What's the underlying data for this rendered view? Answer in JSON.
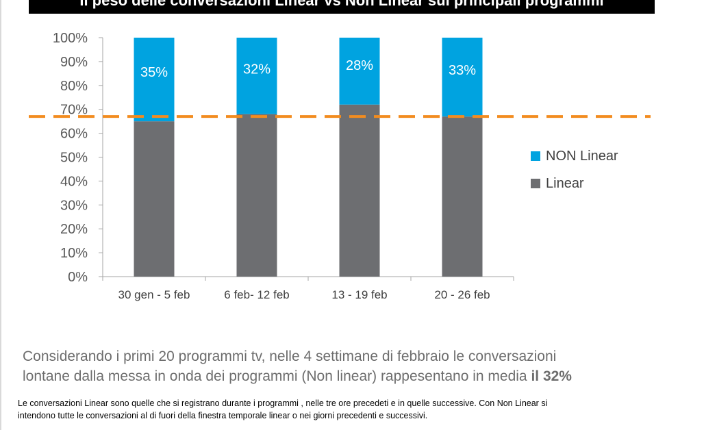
{
  "title": "Il peso delle conversazioni Linear vs Non Linear sui principali programmi",
  "chart_data": {
    "type": "bar",
    "stacked": true,
    "percent_axis": true,
    "categories": [
      "30 gen - 5 feb",
      "6 feb- 12 feb",
      "13 - 19 feb",
      "20 - 26 feb"
    ],
    "series": [
      {
        "name": "Linear",
        "values": [
          65,
          68,
          72,
          67
        ],
        "color": "#6d6e71"
      },
      {
        "name": "NON Linear",
        "values": [
          35,
          32,
          28,
          33
        ],
        "color": "#00a3e0"
      }
    ],
    "data_labels": [
      "35%",
      "32%",
      "28%",
      "33%"
    ],
    "yticks": [
      "0%",
      "10%",
      "20%",
      "30%",
      "40%",
      "50%",
      "60%",
      "70%",
      "80%",
      "90%",
      "100%"
    ],
    "ylim": [
      0,
      100
    ],
    "reference_line": {
      "value": 67,
      "color": "#f28c1f",
      "style": "dashed"
    },
    "legend_position": "right",
    "grid": false
  },
  "legend": [
    {
      "label": "NON Linear",
      "color": "#00a3e0"
    },
    {
      "label": "Linear",
      "color": "#6d6e71"
    }
  ],
  "summary": {
    "line1": "Considerando i primi 20 programmi tv, nelle  4 settimane di febbraio  le conversazioni",
    "line2_pre": "lontane dalla messa in onda dei programmi (Non linear) rappesentano in media ",
    "line2_bold": "il 32%"
  },
  "footnote": {
    "line1": "Le conversazioni Linear sono quelle che si registrano durante i programmi , nelle tre ore precedeti e in quelle successive. Con Non Linear si",
    "line2": "intendono tutte le conversazioni al di fuori della finestra temporale linear o nei giorni precedenti e successivi."
  }
}
